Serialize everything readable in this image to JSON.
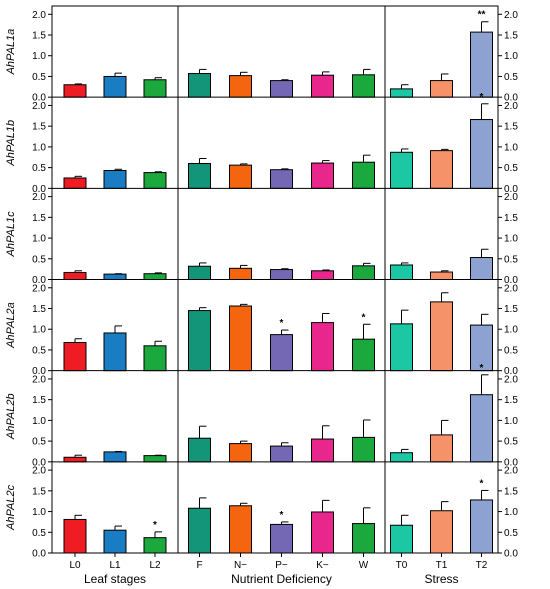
{
  "chart_data": {
    "type": "bar",
    "layout": "grid-6-rows-3-columns",
    "ylim": [
      0,
      2.2
    ],
    "yticks": [
      0.0,
      0.5,
      1.0,
      1.5,
      2.0
    ],
    "ytick_labels": [
      "0.0",
      "0.5",
      "1.0",
      "1.5",
      "2.0"
    ],
    "groups": [
      {
        "label": "Leaf stages",
        "categories": [
          "L0",
          "L1",
          "L2"
        ],
        "colors": [
          "#ef1c24",
          "#1a7dc4",
          "#1ba83c"
        ]
      },
      {
        "label": "Nutrient Deficiency",
        "categories": [
          "F",
          "N−",
          "P−",
          "K−",
          "W"
        ],
        "colors": [
          "#13957a",
          "#f5650f",
          "#7468b5",
          "#e8268c",
          "#1ba83c"
        ]
      },
      {
        "label": "Stress",
        "categories": [
          "T0",
          "T1",
          "T2"
        ],
        "colors": [
          "#1cc8a4",
          "#f6926a",
          "#8da2d0"
        ]
      }
    ],
    "genes": [
      {
        "name": "AhPAL1a",
        "values": [
          [
            0.3,
            0.5,
            0.42
          ],
          [
            0.57,
            0.52,
            0.4,
            0.53,
            0.54
          ],
          [
            0.2,
            0.4,
            1.57
          ]
        ],
        "errors": [
          [
            0.02,
            0.08,
            0.05
          ],
          [
            0.1,
            0.08,
            0.02,
            0.08,
            0.13
          ],
          [
            0.1,
            0.16,
            0.25
          ]
        ],
        "marks": [
          [
            "",
            "",
            ""
          ],
          [
            "",
            "",
            "",
            "",
            ""
          ],
          [
            "",
            "",
            "**"
          ]
        ]
      },
      {
        "name": "AhPAL1b",
        "values": [
          [
            0.25,
            0.43,
            0.38
          ],
          [
            0.6,
            0.56,
            0.45,
            0.61,
            0.63
          ],
          [
            0.87,
            0.91,
            1.66
          ]
        ],
        "errors": [
          [
            0.04,
            0.03,
            0.02
          ],
          [
            0.12,
            0.03,
            0.02,
            0.06,
            0.17
          ],
          [
            0.08,
            0.03,
            0.38
          ]
        ],
        "marks": [
          [
            "",
            "",
            ""
          ],
          [
            "",
            "",
            "",
            "",
            ""
          ],
          [
            "",
            "",
            "*"
          ]
        ]
      },
      {
        "name": "AhPAL1c",
        "values": [
          [
            0.17,
            0.13,
            0.14
          ],
          [
            0.32,
            0.27,
            0.24,
            0.21,
            0.33
          ],
          [
            0.35,
            0.18,
            0.53
          ]
        ],
        "errors": [
          [
            0.04,
            0.01,
            0.02
          ],
          [
            0.08,
            0.07,
            0.02,
            0.02,
            0.06
          ],
          [
            0.05,
            0.03,
            0.2
          ]
        ],
        "marks": [
          [
            "",
            "",
            ""
          ],
          [
            "",
            "",
            "",
            "",
            ""
          ],
          [
            "",
            "",
            ""
          ]
        ]
      },
      {
        "name": "AhPAL2a",
        "values": [
          [
            0.68,
            0.91,
            0.6
          ],
          [
            1.45,
            1.56,
            0.87,
            1.16,
            0.76
          ],
          [
            1.13,
            1.66,
            1.1
          ]
        ],
        "errors": [
          [
            0.09,
            0.17,
            0.11
          ],
          [
            0.07,
            0.04,
            0.11,
            0.22,
            0.36
          ],
          [
            0.33,
            0.22,
            0.26
          ]
        ],
        "marks": [
          [
            "",
            "",
            ""
          ],
          [
            "",
            "",
            "*",
            "",
            "*"
          ],
          [
            "",
            "",
            ""
          ]
        ]
      },
      {
        "name": "AhPAL2b",
        "values": [
          [
            0.11,
            0.24,
            0.15
          ],
          [
            0.57,
            0.44,
            0.38,
            0.55,
            0.59
          ],
          [
            0.22,
            0.65,
            1.62
          ]
        ],
        "errors": [
          [
            0.05,
            0.01,
            0.01
          ],
          [
            0.29,
            0.06,
            0.08,
            0.32,
            0.42
          ],
          [
            0.08,
            0.35,
            0.48
          ]
        ],
        "marks": [
          [
            "",
            "",
            ""
          ],
          [
            "",
            "",
            "",
            "",
            ""
          ],
          [
            "",
            "",
            "*"
          ]
        ]
      },
      {
        "name": "AhPAL2c",
        "values": [
          [
            0.81,
            0.55,
            0.37
          ],
          [
            1.08,
            1.14,
            0.69,
            0.99,
            0.71
          ],
          [
            0.67,
            1.02,
            1.28
          ]
        ],
        "errors": [
          [
            0.1,
            0.1,
            0.14
          ],
          [
            0.25,
            0.06,
            0.06,
            0.28,
            0.38
          ],
          [
            0.24,
            0.22,
            0.23
          ]
        ],
        "marks": [
          [
            "",
            "",
            "*"
          ],
          [
            "",
            "",
            "*",
            "",
            ""
          ],
          [
            "",
            "",
            "*"
          ]
        ]
      }
    ]
  }
}
